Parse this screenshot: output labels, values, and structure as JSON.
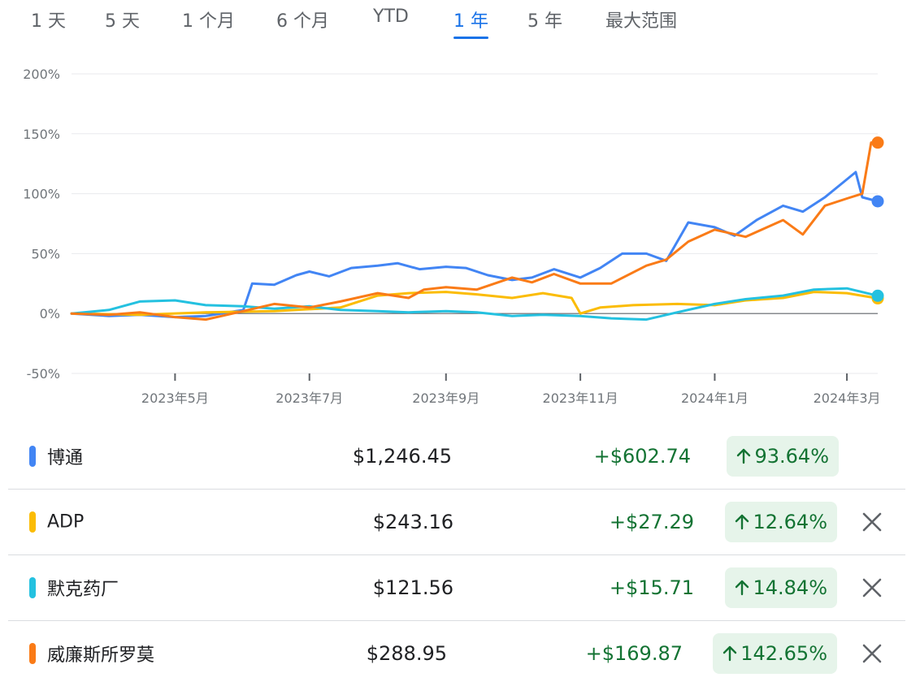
{
  "ranges": {
    "items": [
      {
        "label": "1 天",
        "active": false
      },
      {
        "label": "5 天",
        "active": false
      },
      {
        "label": "1 个月",
        "active": false
      },
      {
        "label": "6 个月",
        "active": false
      },
      {
        "label": "YTD",
        "active": false
      },
      {
        "label": "1 年",
        "active": true
      },
      {
        "label": "5 年",
        "active": false
      },
      {
        "label": "最大范围",
        "active": false
      }
    ]
  },
  "chart_data": {
    "type": "line",
    "ylim": [
      -50,
      200
    ],
    "yticks": [
      -50,
      0,
      50,
      100,
      150,
      200
    ],
    "ytick_labels": [
      "-50%",
      "0%",
      "50%",
      "100%",
      "150%",
      "200%"
    ],
    "x_start": "2023-03-15",
    "x_end": "2024-03-15",
    "xticks": [
      {
        "date": "2023-05-01",
        "label": "2023年5月"
      },
      {
        "date": "2023-07-01",
        "label": "2023年7月"
      },
      {
        "date": "2023-09-01",
        "label": "2023年9月"
      },
      {
        "date": "2023-11-01",
        "label": "2023年11月"
      },
      {
        "date": "2024-01-01",
        "label": "2024年1月"
      },
      {
        "date": "2024-03-01",
        "label": "2024年3月"
      }
    ],
    "grid": true,
    "series": [
      {
        "name": "博通",
        "color": "#4285f4",
        "points": [
          [
            "2023-03-15",
            0
          ],
          [
            "2023-04-01",
            -2
          ],
          [
            "2023-04-15",
            -1
          ],
          [
            "2023-05-01",
            -3
          ],
          [
            "2023-05-15",
            -2
          ],
          [
            "2023-06-01",
            3
          ],
          [
            "2023-06-05",
            25
          ],
          [
            "2023-06-15",
            24
          ],
          [
            "2023-06-25",
            32
          ],
          [
            "2023-07-01",
            35
          ],
          [
            "2023-07-10",
            31
          ],
          [
            "2023-07-20",
            38
          ],
          [
            "2023-08-01",
            40
          ],
          [
            "2023-08-10",
            42
          ],
          [
            "2023-08-20",
            37
          ],
          [
            "2023-09-01",
            39
          ],
          [
            "2023-09-10",
            38
          ],
          [
            "2023-09-20",
            32
          ],
          [
            "2023-10-01",
            28
          ],
          [
            "2023-10-10",
            30
          ],
          [
            "2023-10-20",
            37
          ],
          [
            "2023-11-01",
            30
          ],
          [
            "2023-11-10",
            38
          ],
          [
            "2023-11-20",
            50
          ],
          [
            "2023-12-01",
            50
          ],
          [
            "2023-12-10",
            44
          ],
          [
            "2023-12-20",
            76
          ],
          [
            "2024-01-01",
            72
          ],
          [
            "2024-01-10",
            65
          ],
          [
            "2024-01-20",
            78
          ],
          [
            "2024-02-01",
            90
          ],
          [
            "2024-02-10",
            85
          ],
          [
            "2024-02-20",
            97
          ],
          [
            "2024-03-01",
            112
          ],
          [
            "2024-03-05",
            118
          ],
          [
            "2024-03-08",
            97
          ],
          [
            "2024-03-15",
            93.64
          ]
        ]
      },
      {
        "name": "ADP",
        "color": "#fbbc04",
        "points": [
          [
            "2023-03-15",
            0
          ],
          [
            "2023-04-15",
            -1
          ],
          [
            "2023-05-15",
            1
          ],
          [
            "2023-06-15",
            2
          ],
          [
            "2023-07-15",
            5
          ],
          [
            "2023-08-01",
            15
          ],
          [
            "2023-08-15",
            17
          ],
          [
            "2023-09-01",
            18
          ],
          [
            "2023-09-15",
            16
          ],
          [
            "2023-10-01",
            13
          ],
          [
            "2023-10-15",
            17
          ],
          [
            "2023-10-28",
            13
          ],
          [
            "2023-11-01",
            0
          ],
          [
            "2023-11-10",
            5
          ],
          [
            "2023-11-25",
            7
          ],
          [
            "2023-12-15",
            8
          ],
          [
            "2024-01-01",
            7
          ],
          [
            "2024-01-15",
            11
          ],
          [
            "2024-02-01",
            13
          ],
          [
            "2024-02-15",
            18
          ],
          [
            "2024-03-01",
            17
          ],
          [
            "2024-03-15",
            12.64
          ]
        ]
      },
      {
        "name": "默克药厂",
        "color": "#24c1e0",
        "points": [
          [
            "2023-03-15",
            0
          ],
          [
            "2023-04-01",
            3
          ],
          [
            "2023-04-15",
            10
          ],
          [
            "2023-05-01",
            11
          ],
          [
            "2023-05-15",
            7
          ],
          [
            "2023-06-01",
            6
          ],
          [
            "2023-06-15",
            4
          ],
          [
            "2023-07-01",
            6
          ],
          [
            "2023-07-15",
            3
          ],
          [
            "2023-08-01",
            2
          ],
          [
            "2023-08-15",
            1
          ],
          [
            "2023-09-01",
            2
          ],
          [
            "2023-09-15",
            1
          ],
          [
            "2023-10-01",
            -2
          ],
          [
            "2023-10-15",
            -1
          ],
          [
            "2023-11-01",
            -2
          ],
          [
            "2023-11-15",
            -4
          ],
          [
            "2023-12-01",
            -5
          ],
          [
            "2023-12-15",
            1
          ],
          [
            "2024-01-01",
            8
          ],
          [
            "2024-01-15",
            12
          ],
          [
            "2024-02-01",
            15
          ],
          [
            "2024-02-15",
            20
          ],
          [
            "2024-03-01",
            21
          ],
          [
            "2024-03-15",
            14.84
          ]
        ]
      },
      {
        "name": "威廉斯所罗莫",
        "color": "#fa7b17",
        "points": [
          [
            "2023-03-15",
            0
          ],
          [
            "2023-04-01",
            -1
          ],
          [
            "2023-04-15",
            1
          ],
          [
            "2023-05-01",
            -3
          ],
          [
            "2023-05-15",
            -5
          ],
          [
            "2023-06-01",
            2
          ],
          [
            "2023-06-15",
            8
          ],
          [
            "2023-07-01",
            5
          ],
          [
            "2023-07-15",
            10
          ],
          [
            "2023-08-01",
            17
          ],
          [
            "2023-08-15",
            13
          ],
          [
            "2023-08-22",
            20
          ],
          [
            "2023-09-01",
            22
          ],
          [
            "2023-09-15",
            20
          ],
          [
            "2023-10-01",
            30
          ],
          [
            "2023-10-10",
            26
          ],
          [
            "2023-10-20",
            33
          ],
          [
            "2023-11-01",
            25
          ],
          [
            "2023-11-15",
            25
          ],
          [
            "2023-12-01",
            40
          ],
          [
            "2023-12-10",
            45
          ],
          [
            "2023-12-20",
            60
          ],
          [
            "2024-01-01",
            70
          ],
          [
            "2024-01-15",
            64
          ],
          [
            "2024-02-01",
            78
          ],
          [
            "2024-02-10",
            66
          ],
          [
            "2024-02-20",
            90
          ],
          [
            "2024-03-01",
            96
          ],
          [
            "2024-03-08",
            100
          ],
          [
            "2024-03-12",
            142.65
          ],
          [
            "2024-03-15",
            142.65
          ]
        ]
      }
    ]
  },
  "stocks": [
    {
      "name": "博通",
      "color": "#4285f4",
      "price": "$1,246.45",
      "change": "+$602.74",
      "pct": "93.64%",
      "removable": false
    },
    {
      "name": "ADP",
      "color": "#fbbc04",
      "price": "$243.16",
      "change": "+$27.29",
      "pct": "12.64%",
      "removable": true
    },
    {
      "name": "默克药厂",
      "color": "#24c1e0",
      "price": "$121.56",
      "change": "+$15.71",
      "pct": "14.84%",
      "removable": true
    },
    {
      "name": "威廉斯所罗莫",
      "color": "#fa7b17",
      "price": "$288.95",
      "change": "+$169.87",
      "pct": "142.65%",
      "removable": true
    }
  ],
  "icons": {
    "up": "arrow-up-icon",
    "remove": "close-icon"
  },
  "colors": {
    "accent": "#1a73e8",
    "positive": "#137333",
    "positive_bg": "#e6f4ea"
  }
}
